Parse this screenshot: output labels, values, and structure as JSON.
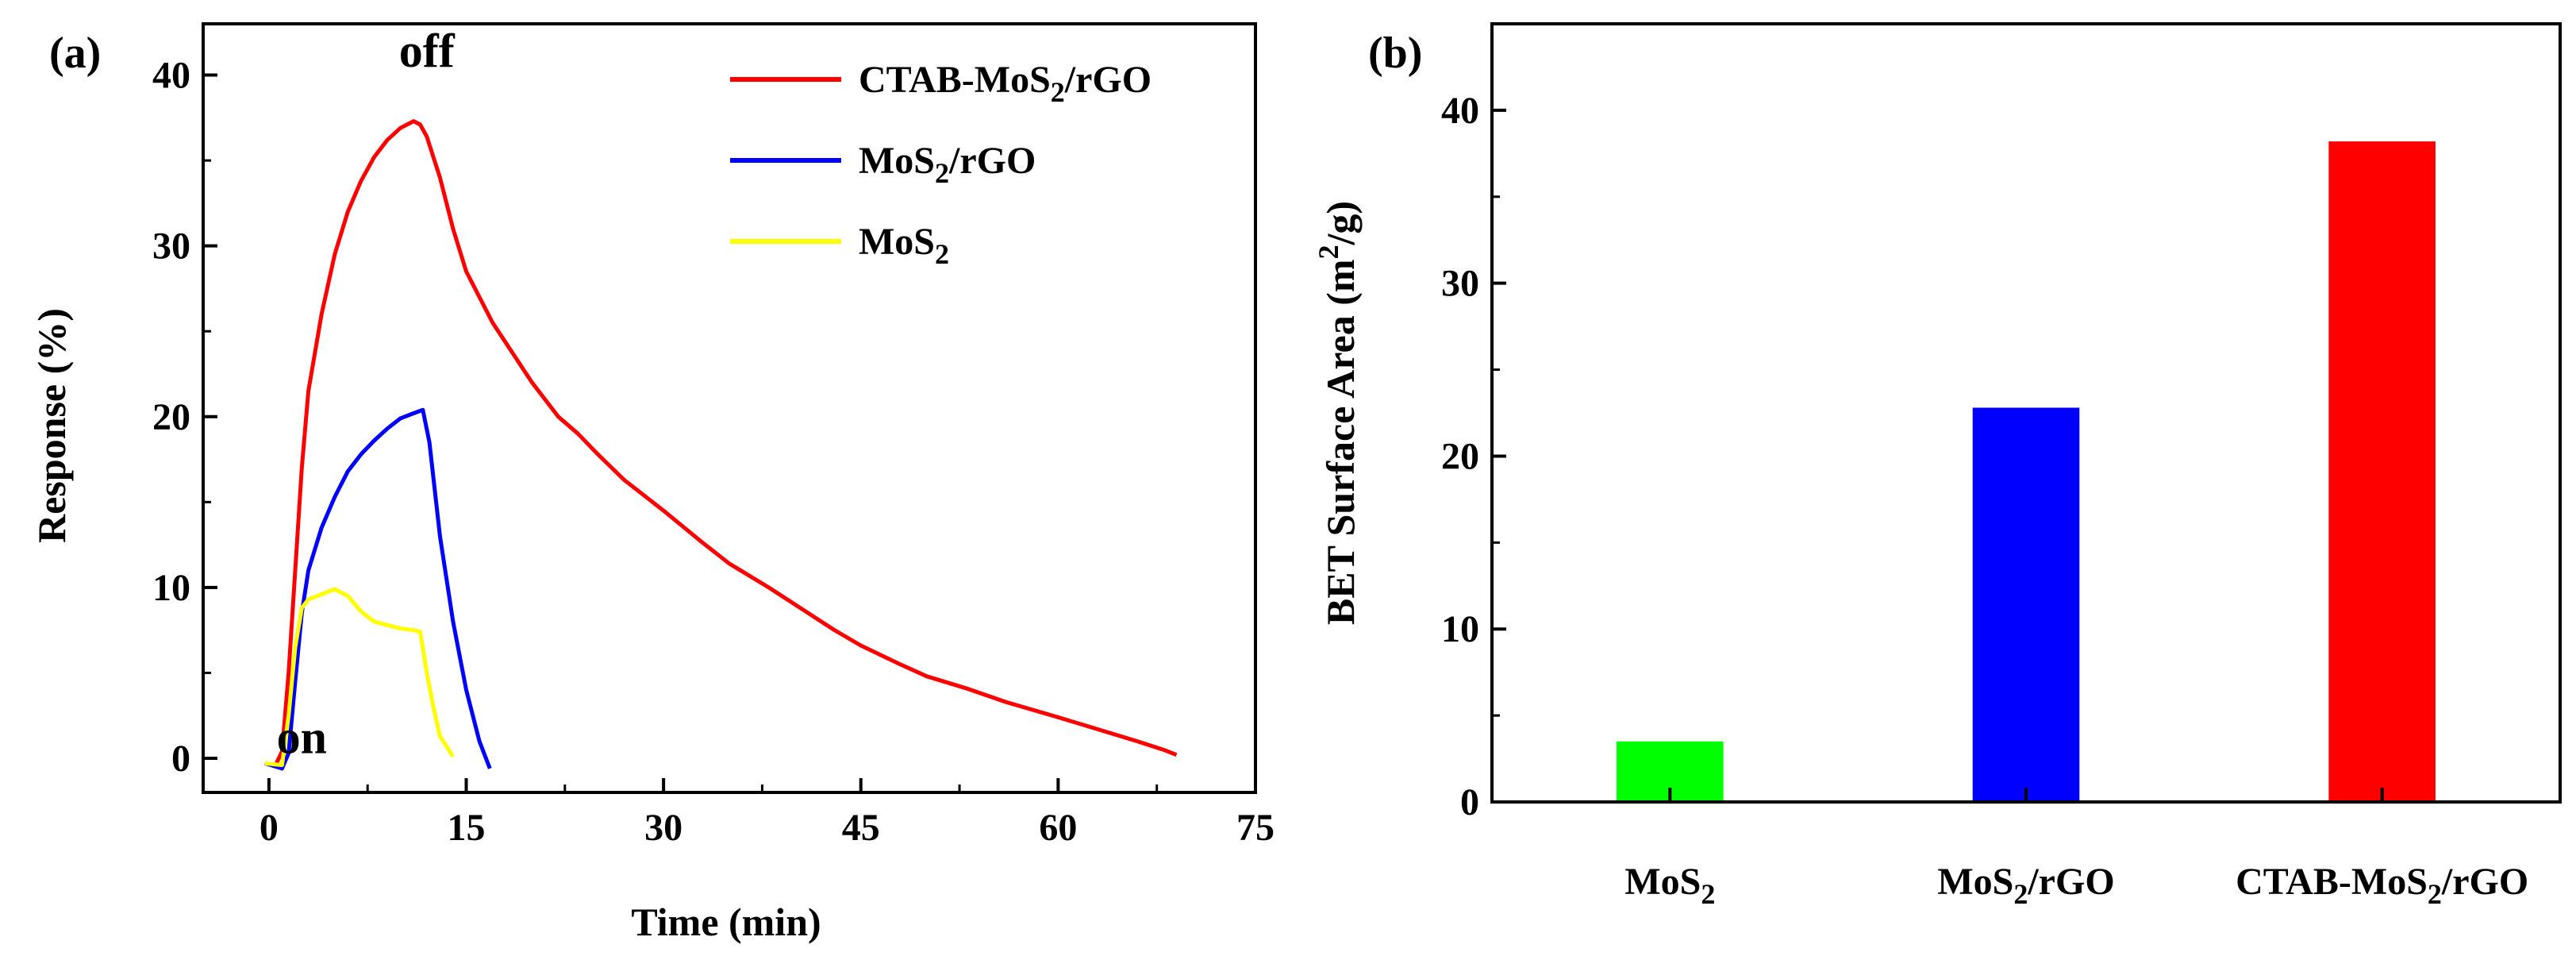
{
  "chart_data": [
    {
      "panel": "(a)",
      "type": "line",
      "title": "",
      "xlabel": "Time (min)",
      "ylabel": "Response (%)",
      "xlim": [
        -5,
        75
      ],
      "ylim": [
        -2,
        43
      ],
      "xticks": [
        0,
        15,
        30,
        45,
        60,
        75
      ],
      "yticks": [
        0,
        10,
        20,
        30,
        40
      ],
      "annotations": [
        {
          "text": "off",
          "x": 12,
          "y": 40.5
        },
        {
          "text": "on",
          "x": 2.5,
          "y": 0.3
        }
      ],
      "series": [
        {
          "name_main": "CTAB-MoS",
          "name_sub": "2",
          "name_tail": "/rGO",
          "color": "#ff0000",
          "x": [
            -0.3,
            0.5,
            1,
            1.5,
            2,
            2.5,
            3,
            4,
            5,
            6,
            7,
            8,
            9,
            10,
            11,
            11.5,
            12,
            13,
            14,
            15,
            17,
            20,
            22,
            23.5,
            25,
            27,
            30,
            33,
            35,
            38,
            41,
            43,
            45,
            48,
            50,
            53,
            56,
            60,
            63,
            66,
            68,
            69
          ],
          "y": [
            -0.3,
            -0.4,
            0.4,
            5,
            11,
            17,
            21.5,
            26,
            29.5,
            32,
            33.8,
            35.2,
            36.2,
            36.9,
            37.3,
            37.1,
            36.4,
            34,
            31,
            28.5,
            25.5,
            22,
            20,
            19,
            17.8,
            16.3,
            14.5,
            12.6,
            11.4,
            10,
            8.5,
            7.5,
            6.6,
            5.5,
            4.8,
            4.1,
            3.3,
            2.4,
            1.7,
            1.0,
            0.5,
            0.2
          ]
        },
        {
          "name_main": "MoS",
          "name_sub": "2",
          "name_tail": "/rGO",
          "color": "#0000ff",
          "x": [
            -0.3,
            1,
            1.5,
            2,
            2.5,
            3,
            4,
            5,
            6,
            7,
            8,
            9,
            10,
            11,
            11.7,
            12.2,
            13,
            14,
            15,
            16,
            16.8
          ],
          "y": [
            -0.3,
            -0.6,
            0.3,
            4.5,
            8.5,
            11,
            13.5,
            15.3,
            16.8,
            17.8,
            18.6,
            19.3,
            19.9,
            20.2,
            20.4,
            18.5,
            13,
            8,
            4,
            1,
            -0.6
          ]
        },
        {
          "name_main": "MoS",
          "name_sub": "2",
          "name_tail": "",
          "color": "#ffff00",
          "x": [
            -0.3,
            1,
            1.5,
            2,
            2.5,
            3,
            4,
            5,
            6,
            7,
            8,
            9,
            10,
            11,
            11.5,
            12,
            12.5,
            13,
            14
          ],
          "y": [
            -0.3,
            -0.4,
            2.5,
            6.5,
            8.8,
            9.3,
            9.6,
            9.9,
            9.5,
            8.6,
            8.0,
            7.8,
            7.6,
            7.5,
            7.4,
            5,
            3,
            1.3,
            0.1
          ]
        }
      ]
    },
    {
      "panel": "(b)",
      "type": "bar",
      "title": "",
      "xlabel": "",
      "ylabel_main": "BET Surface Area (m",
      "ylabel_sup": "2",
      "ylabel_tail": "/g)",
      "ylim": [
        0,
        45
      ],
      "yticks": [
        0,
        10,
        20,
        30,
        40
      ],
      "categories": [
        {
          "main": "MoS",
          "sub": "2",
          "tail": ""
        },
        {
          "main": "MoS",
          "sub": "2",
          "tail": "/rGO"
        },
        {
          "main": "CTAB-MoS",
          "sub": "2",
          "tail": "/rGO"
        }
      ],
      "values": [
        3.5,
        22.8,
        38.2
      ],
      "colors": [
        "#00ff00",
        "#0000ff",
        "#ff0000"
      ]
    }
  ]
}
